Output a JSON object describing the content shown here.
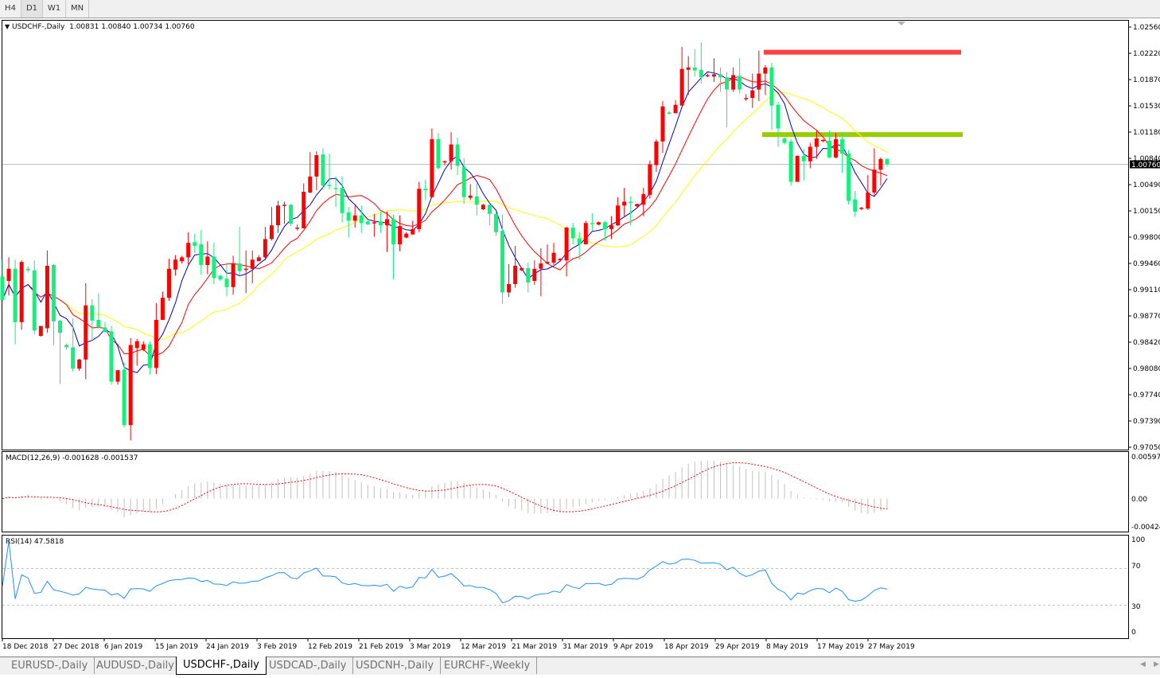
{
  "toolbar": {
    "timeframes": [
      "H4",
      "D1",
      "W1",
      "MN"
    ],
    "active": "D1"
  },
  "header": {
    "symbol": "USDCHF-,Daily",
    "ohlc": "1.00831 1.00840 1.00734 1.00760"
  },
  "macd": {
    "label": "MACD(12,26,9) -0.001628 -0.001537",
    "axis": [
      "0.00597",
      "0.00",
      "-0.00424"
    ]
  },
  "rsi": {
    "label": "RSI(14) 47.5818",
    "axis": [
      "100",
      "70",
      "30",
      "0"
    ]
  },
  "tabs": [
    "EURUSD-,Daily",
    "AUDUSD-,Daily",
    "USDCHF-,Daily",
    "USDCAD-,Daily",
    "USDCNH-,Daily",
    "EURCHF-,Weekly"
  ],
  "active_tab": "USDCHF-,Daily",
  "colors": {
    "bull": "#ff0000",
    "bear": "#14f07c",
    "ma_fast": "#0000cc",
    "ma_mid": "#ff0000",
    "ma_slow": "#ffff00",
    "rsi": "#1e90ff",
    "macd_hist": "#c0c0c0",
    "macd_signal": "#ff0000"
  },
  "chart_data": {
    "type": "candlestick",
    "title": "USDCHF-,Daily",
    "price_axis_ticks": [
      "1.02560",
      "1.02220",
      "1.01870",
      "1.01530",
      "1.01180",
      "1.00840",
      "1.00490",
      "1.00150",
      "0.99800",
      "0.99460",
      "0.99110",
      "0.98770",
      "0.98420",
      "0.98080",
      "0.97740",
      "0.97390",
      "0.97050"
    ],
    "ylim": [
      0.9705,
      1.0256
    ],
    "current_price": "1.00760",
    "date_ticks": [
      "18 Dec 2018",
      "27 Dec 2018",
      "6 Jan 2019",
      "15 Jan 2019",
      "24 Jan 2019",
      "3 Feb 2019",
      "12 Feb 2019",
      "21 Feb 2019",
      "3 Mar 2019",
      "12 Mar 2019",
      "21 Mar 2019",
      "31 Mar 2019",
      "9 Apr 2019",
      "18 Apr 2019",
      "29 Apr 2019",
      "8 May 2019",
      "17 May 2019",
      "27 May 2019"
    ],
    "levels": [
      {
        "price": 1.0223,
        "color": "#ff4040"
      },
      {
        "price": 1.0115,
        "color": "#9acd00"
      }
    ],
    "ohlc": [
      [
        0.9929,
        0.9951,
        0.9898,
        0.9898
      ],
      [
        0.9923,
        0.9954,
        0.9904,
        0.9939
      ],
      [
        0.9939,
        0.9951,
        0.984,
        0.9869
      ],
      [
        0.9869,
        0.995,
        0.9859,
        0.9948
      ],
      [
        0.9939,
        0.9942,
        0.9934,
        0.9937
      ],
      [
        0.9937,
        0.995,
        0.9853,
        0.9858
      ],
      [
        0.9851,
        0.9864,
        0.985,
        0.9864
      ],
      [
        0.9861,
        0.9963,
        0.9855,
        0.9943
      ],
      [
        0.9944,
        0.9945,
        0.9839,
        0.987
      ],
      [
        0.9871,
        0.9872,
        0.9788,
        0.9855
      ],
      [
        0.9839,
        0.9841,
        0.9833,
        0.9836
      ],
      [
        0.9836,
        0.9874,
        0.9804,
        0.9808
      ],
      [
        0.9808,
        0.9821,
        0.9805,
        0.982
      ],
      [
        0.982,
        0.992,
        0.9794,
        0.9891
      ],
      [
        0.9891,
        0.9899,
        0.9845,
        0.9871
      ],
      [
        0.9872,
        0.9907,
        0.9861,
        0.9862
      ],
      [
        0.9862,
        0.9869,
        0.9855,
        0.9856
      ],
      [
        0.9857,
        0.9864,
        0.9787,
        0.9791
      ],
      [
        0.9791,
        0.9806,
        0.9787,
        0.9806
      ],
      [
        0.9807,
        0.9816,
        0.9731,
        0.9734
      ],
      [
        0.9734,
        0.9848,
        0.9714,
        0.9839
      ],
      [
        0.9835,
        0.9847,
        0.9812,
        0.9844
      ],
      [
        0.9833,
        0.9844,
        0.9831,
        0.984
      ],
      [
        0.984,
        0.9844,
        0.98,
        0.9809
      ],
      [
        0.9809,
        0.9894,
        0.9801,
        0.9872
      ],
      [
        0.9872,
        0.9909,
        0.9872,
        0.9901
      ],
      [
        0.9901,
        0.9952,
        0.9897,
        0.9939
      ],
      [
        0.9938,
        0.9957,
        0.993,
        0.9951
      ],
      [
        0.9949,
        0.9956,
        0.9946,
        0.9954
      ],
      [
        0.9954,
        0.9987,
        0.9945,
        0.9973
      ],
      [
        0.9974,
        0.9985,
        0.996,
        0.9969
      ],
      [
        0.9971,
        0.999,
        0.9931,
        0.9944
      ],
      [
        0.9944,
        0.9975,
        0.9932,
        0.9955
      ],
      [
        0.9955,
        0.9973,
        0.9919,
        0.9927
      ],
      [
        0.993,
        0.9931,
        0.9923,
        0.9925
      ],
      [
        0.9926,
        0.9947,
        0.9903,
        0.9915
      ],
      [
        0.9915,
        0.9956,
        0.9905,
        0.9946
      ],
      [
        0.9946,
        0.9994,
        0.993,
        0.9936
      ],
      [
        0.9938,
        0.9963,
        0.9907,
        0.9939
      ],
      [
        0.9939,
        0.9963,
        0.992,
        0.9951
      ],
      [
        0.9949,
        0.9957,
        0.9949,
        0.9954
      ],
      [
        0.9954,
        0.9994,
        0.995,
        0.9978
      ],
      [
        0.9978,
        1.002,
        0.9976,
        0.9996
      ],
      [
        0.9996,
        1.0028,
        0.9986,
        1.0022
      ],
      [
        1.0022,
        1.0027,
        0.9998,
        1.0023
      ],
      [
        1.0023,
        1.0024,
        0.9995,
        0.9998
      ],
      [
        0.9992,
        0.9997,
        0.9989,
        0.9993
      ],
      [
        0.9992,
        1.0051,
        0.9992,
        1.004
      ],
      [
        1.0039,
        1.0092,
        1.0038,
        1.006
      ],
      [
        1.006,
        1.0093,
        1.0042,
        1.0088
      ],
      [
        1.0089,
        1.0097,
        1.0043,
        1.0048
      ],
      [
        1.0049,
        1.009,
        1.0043,
        1.0048
      ],
      [
        1.0045,
        1.006,
        1.002,
        1.0044
      ],
      [
        1.0045,
        1.006,
        1.0,
        1.0012
      ],
      [
        1.0013,
        1.002,
        0.998,
        1.0002
      ],
      [
        1.0002,
        1.0022,
        0.9993,
        1.0009
      ],
      [
        1.0009,
        1.0022,
        0.9986,
        0.9999
      ],
      [
        1.0001,
        1.0003,
        0.9997,
        0.9997
      ],
      [
        0.9999,
        1.0011,
        0.9981,
        1.0
      ],
      [
        1.0001,
        1.0014,
        0.9986,
        0.9996
      ],
      [
        0.9996,
        1.0014,
        0.9961,
        1.0004
      ],
      [
        1.0004,
        1.001,
        0.9925,
        0.9971
      ],
      [
        0.9971,
        1.0009,
        0.9962,
        0.9995
      ],
      [
        0.998,
        0.9987,
        0.9979,
        0.9985
      ],
      [
        0.9984,
        1.0002,
        0.9984,
        0.9991
      ],
      [
        0.9991,
        1.0053,
        0.9987,
        1.0044
      ],
      [
        1.0044,
        1.0056,
        1.0029,
        1.0042
      ],
      [
        1.0033,
        1.0123,
        1.0033,
        1.0109
      ],
      [
        1.0109,
        1.0117,
        1.0069,
        1.0071
      ],
      [
        1.0079,
        1.0081,
        1.0075,
        1.008
      ],
      [
        1.008,
        1.0118,
        1.0069,
        1.0102
      ],
      [
        1.0102,
        1.0111,
        1.0062,
        1.0074
      ],
      [
        1.0073,
        1.0084,
        1.0024,
        1.0033
      ],
      [
        1.0032,
        1.005,
        1.0029,
        1.0035
      ],
      [
        1.0034,
        1.0051,
        1.0009,
        1.0023
      ],
      [
        1.0017,
        1.0024,
        1.0016,
        1.0023
      ],
      [
        1.0023,
        1.0023,
        0.9996,
        1.0011
      ],
      [
        1.0011,
        1.0013,
        0.9982,
        0.9987
      ],
      [
        0.9989,
        1.001,
        0.9893,
        0.9908
      ],
      [
        0.9908,
        0.9945,
        0.9902,
        0.9919
      ],
      [
        0.9919,
        0.9969,
        0.9914,
        0.9943
      ],
      [
        0.9937,
        0.994,
        0.9936,
        0.994
      ],
      [
        0.994,
        0.9947,
        0.9908,
        0.9921
      ],
      [
        0.9923,
        0.995,
        0.9918,
        0.9939
      ],
      [
        0.9939,
        0.9966,
        0.9903,
        0.9946
      ],
      [
        0.9946,
        0.9971,
        0.9945,
        0.9948
      ],
      [
        0.9947,
        0.9973,
        0.9944,
        0.996
      ],
      [
        0.995,
        0.9953,
        0.9949,
        0.9952
      ],
      [
        0.995,
        0.9994,
        0.9929,
        0.9993
      ],
      [
        0.9993,
        0.9999,
        0.9971,
        0.9979
      ],
      [
        0.9979,
        0.9987,
        0.9951,
        0.9971
      ],
      [
        0.9971,
        1.0002,
        0.9971,
        0.9999
      ],
      [
        0.9999,
        1.0012,
        0.9989,
        0.9998
      ],
      [
        0.9997,
        1.0001,
        0.9996,
        1.0
      ],
      [
        1.0,
        1.0002,
        0.9976,
        0.9991
      ],
      [
        0.9991,
        1.0008,
        0.9978,
        0.9996
      ],
      [
        0.9996,
        1.0033,
        0.9995,
        1.0022
      ],
      [
        1.0022,
        1.0045,
        1.0008,
        1.0027
      ],
      [
        1.0027,
        1.0034,
        0.9996,
        1.0026
      ],
      [
        1.0021,
        1.0024,
        1.002,
        1.0024
      ],
      [
        1.0023,
        1.0045,
        1.0008,
        1.0037
      ],
      [
        1.0036,
        1.0081,
        1.0031,
        1.0076
      ],
      [
        1.0075,
        1.0109,
        1.0066,
        1.0106
      ],
      [
        1.0106,
        1.0159,
        1.0091,
        1.0152
      ],
      [
        1.0144,
        1.0146,
        1.0141,
        1.0143
      ],
      [
        1.0143,
        1.016,
        1.0143,
        1.0154
      ],
      [
        1.0153,
        1.023,
        1.0153,
        1.0201
      ],
      [
        1.02,
        1.0218,
        1.0167,
        1.0203
      ],
      [
        1.0203,
        1.0227,
        1.0191,
        1.0199
      ],
      [
        1.02,
        1.0236,
        1.0182,
        1.019
      ],
      [
        1.0192,
        1.0195,
        1.019,
        1.0193
      ],
      [
        1.0191,
        1.0215,
        1.0184,
        1.0194
      ],
      [
        1.0194,
        1.0203,
        1.0171,
        1.019
      ],
      [
        1.019,
        1.0197,
        1.0125,
        1.0174
      ],
      [
        1.0174,
        1.0203,
        1.0171,
        1.0193
      ],
      [
        1.0192,
        1.0215,
        1.0169,
        1.0174
      ],
      [
        1.0162,
        1.0168,
        1.0159,
        1.0163
      ],
      [
        1.0163,
        1.0195,
        1.015,
        1.0173
      ],
      [
        1.0174,
        1.0225,
        1.0159,
        1.0195
      ],
      [
        1.0195,
        1.0206,
        1.0167,
        1.0203
      ],
      [
        1.0203,
        1.0209,
        1.0121,
        1.0153
      ],
      [
        1.0154,
        1.0158,
        1.0099,
        1.0123
      ],
      [
        1.011,
        1.0111,
        1.0102,
        1.0104
      ],
      [
        1.0106,
        1.0109,
        1.0048,
        1.0053
      ],
      [
        1.0053,
        1.0088,
        1.0053,
        1.0087
      ],
      [
        1.0087,
        1.0096,
        1.0055,
        1.008
      ],
      [
        1.008,
        1.0104,
        1.0071,
        1.0099
      ],
      [
        1.0099,
        1.012,
        1.0083,
        1.011
      ],
      [
        1.0107,
        1.0109,
        1.0105,
        1.0108
      ],
      [
        1.0107,
        1.012,
        1.0084,
        1.0085
      ],
      [
        1.0085,
        1.0117,
        1.0084,
        1.0109
      ],
      [
        1.0109,
        1.0117,
        1.0065,
        1.009
      ],
      [
        1.009,
        1.0095,
        1.0023,
        1.0028
      ],
      [
        1.003,
        1.0041,
        1.0007,
        1.0014
      ],
      [
        1.0018,
        1.002,
        1.0016,
        1.0019
      ],
      [
        1.0018,
        1.0062,
        1.0016,
        1.0039
      ],
      [
        1.0039,
        1.0097,
        1.0034,
        1.0069
      ],
      [
        1.0069,
        1.0085,
        1.0048,
        1.0083
      ],
      [
        1.00831,
        1.0084,
        1.00734,
        1.0076
      ]
    ],
    "macd_ylim": [
      -0.00424,
      0.00597
    ],
    "rsi_levels": [
      70,
      30
    ],
    "rsi_ylim": [
      0,
      100
    ]
  }
}
